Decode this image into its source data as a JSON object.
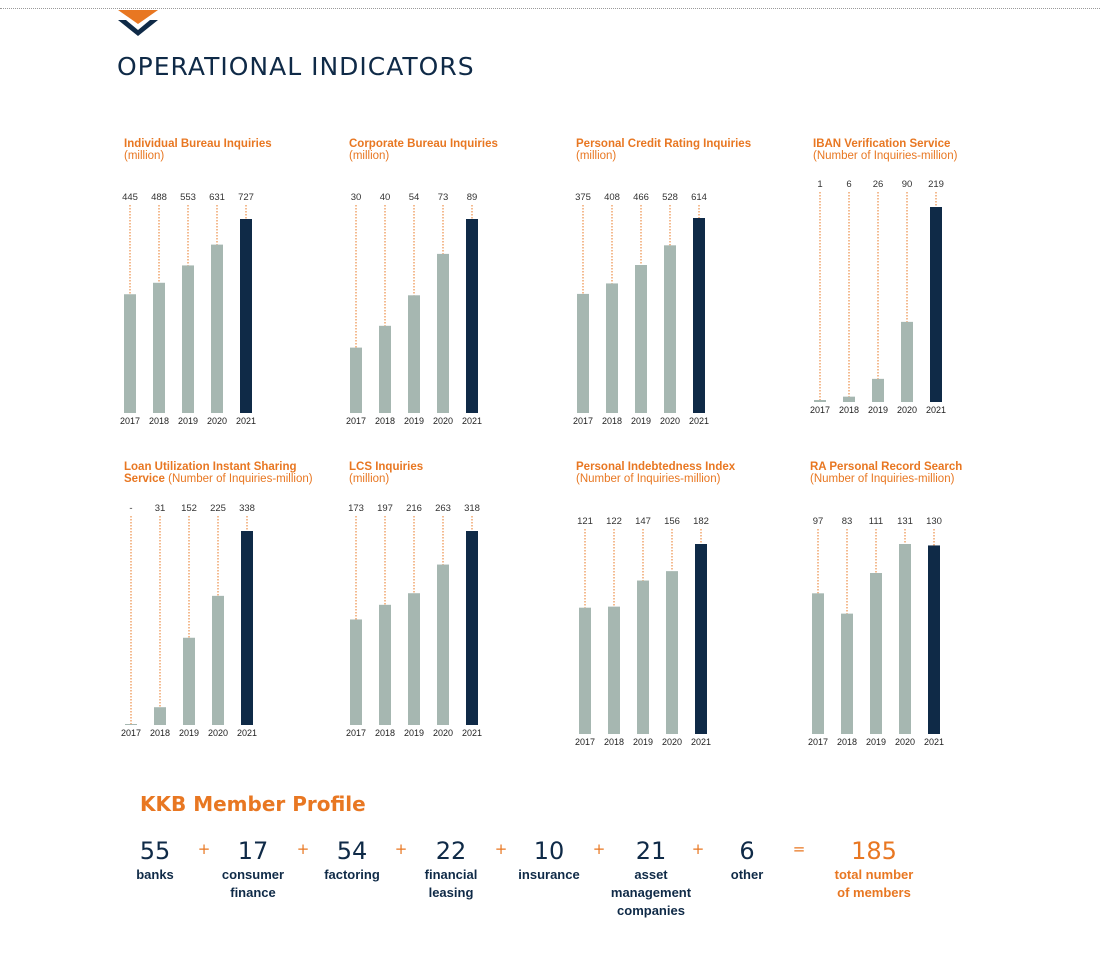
{
  "header": {
    "title": "OPERATIONAL INDICATORS"
  },
  "colors": {
    "accent": "#e87722",
    "navy": "#0f2a47",
    "bar_past": "#a6b7b1",
    "bar_current": "#0f2a47"
  },
  "chart_data": [
    {
      "type": "bar",
      "title": "Individual Bureau Inquiries",
      "subtitle": "(million)",
      "categories": [
        "2017",
        "2018",
        "2019",
        "2020",
        "2021"
      ],
      "values": [
        445,
        488,
        553,
        631,
        727
      ],
      "value_labels": [
        "445",
        "488",
        "553",
        "631",
        "727"
      ],
      "highlight": "2021"
    },
    {
      "type": "bar",
      "title": "Corporate Bureau Inquiries",
      "subtitle": "(million)",
      "categories": [
        "2017",
        "2018",
        "2019",
        "2020",
        "2021"
      ],
      "values": [
        30,
        40,
        54,
        73,
        89
      ],
      "value_labels": [
        "30",
        "40",
        "54",
        "73",
        "89"
      ],
      "highlight": "2021"
    },
    {
      "type": "bar",
      "title": "Personal Credit Rating Inquiries",
      "subtitle": "(million)",
      "categories": [
        "2017",
        "2018",
        "2019",
        "2020",
        "2021"
      ],
      "values": [
        375,
        408,
        466,
        528,
        614
      ],
      "value_labels": [
        "375",
        "408",
        "466",
        "528",
        "614"
      ],
      "highlight": "2021"
    },
    {
      "type": "bar",
      "title": "IBAN Verification Service",
      "subtitle": "(Number of Inquiries-million)",
      "categories": [
        "2017",
        "2018",
        "2019",
        "2020",
        "2021"
      ],
      "values": [
        1,
        6,
        26,
        90,
        219
      ],
      "value_labels": [
        "1",
        "6",
        "26",
        "90",
        "219"
      ],
      "highlight": "2021"
    },
    {
      "type": "bar",
      "title": "Loan Utilization Instant Sharing Service",
      "subtitle": "(Number of Inquiries-million)",
      "categories": [
        "2017",
        "2018",
        "2019",
        "2020",
        "2021"
      ],
      "values": [
        0,
        31,
        152,
        225,
        338
      ],
      "value_labels": [
        "-",
        "31",
        "152",
        "225",
        "338"
      ],
      "highlight": "2021"
    },
    {
      "type": "bar",
      "title": "LCS Inquiries",
      "subtitle": "(million)",
      "categories": [
        "2017",
        "2018",
        "2019",
        "2020",
        "2021"
      ],
      "values": [
        173,
        197,
        216,
        263,
        318
      ],
      "value_labels": [
        "173",
        "197",
        "216",
        "263",
        "318"
      ],
      "highlight": "2021"
    },
    {
      "type": "bar",
      "title": "Personal Indebtedness Index",
      "subtitle": "(Number of Inquiries-million)",
      "categories": [
        "2017",
        "2018",
        "2019",
        "2020",
        "2021"
      ],
      "values": [
        121,
        122,
        147,
        156,
        182
      ],
      "value_labels": [
        "121",
        "122",
        "147",
        "156",
        "182"
      ],
      "highlight": "2021"
    },
    {
      "type": "bar",
      "title": "RA Personal Record Search",
      "subtitle": "(Number of Inquiries-million)",
      "categories": [
        "2017",
        "2018",
        "2019",
        "2020",
        "2021"
      ],
      "values": [
        97,
        83,
        111,
        131,
        130
      ],
      "value_labels": [
        "97",
        "83",
        "111",
        "131",
        "130"
      ],
      "highlight": "2021"
    }
  ],
  "kkb": {
    "title": "KKB Member Profile",
    "items": [
      {
        "value": "55",
        "label": "banks"
      },
      {
        "value": "17",
        "label": "consumer\nfinance"
      },
      {
        "value": "54",
        "label": "factoring"
      },
      {
        "value": "22",
        "label": "financial\nleasing"
      },
      {
        "value": "10",
        "label": "insurance"
      },
      {
        "value": "21",
        "label": "asset\nmanagement\ncompanies"
      },
      {
        "value": "6",
        "label": "other"
      }
    ],
    "plus": "+",
    "equals": "=",
    "total": {
      "value": "185",
      "label": "total number\nof members"
    }
  }
}
